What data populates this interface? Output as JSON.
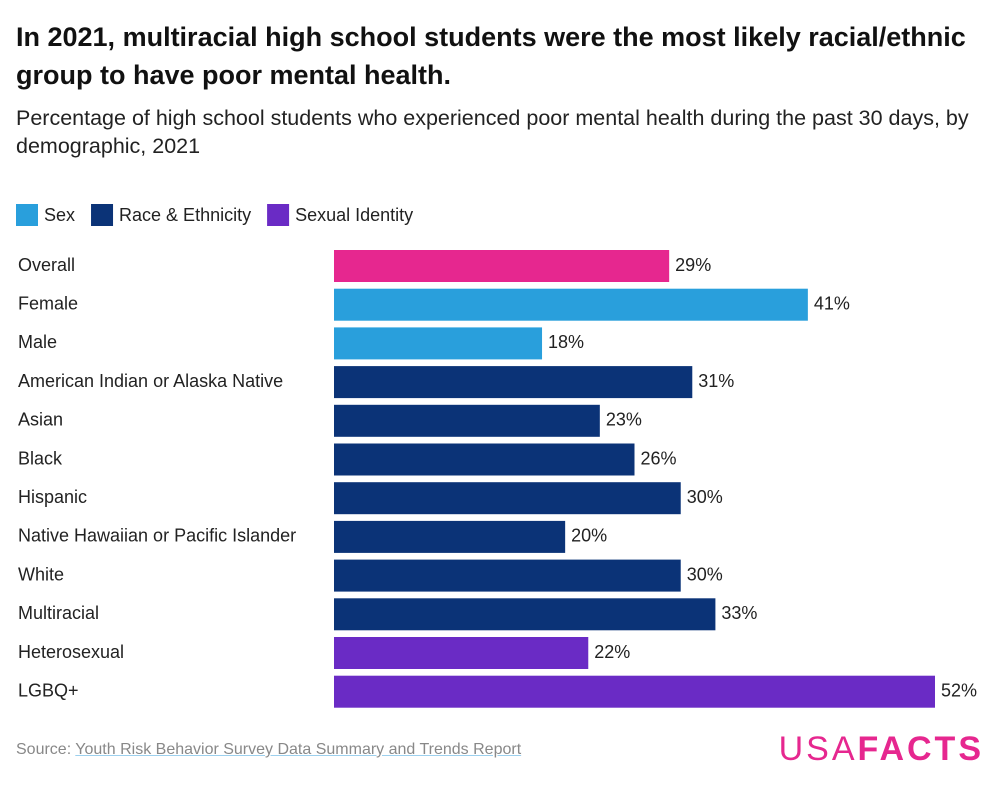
{
  "chart_data": {
    "type": "bar",
    "orientation": "horizontal",
    "title": "In 2021, multiracial high school students were the most likely racial/ethnic group to have poor mental health.",
    "subtitle": "Percentage of high school students who experienced poor mental health during the past 30 days, by demographic, 2021",
    "legend": [
      {
        "name": "Sex",
        "color": "#299fdc"
      },
      {
        "name": "Race & Ethnicity",
        "color": "#0b3377"
      },
      {
        "name": "Sexual Identity",
        "color": "#6a2bc5"
      }
    ],
    "categories": [
      "Overall",
      "Female",
      "Male",
      "American Indian or Alaska Native",
      "Asian",
      "Black",
      "Hispanic",
      "Native Hawaiian or Pacific Islander",
      "White",
      "Multiracial",
      "Heterosexual",
      "LGBQ+"
    ],
    "values": [
      29,
      41,
      18,
      31,
      23,
      26,
      30,
      20,
      30,
      33,
      22,
      52
    ],
    "value_labels": [
      "29%",
      "41%",
      "18%",
      "31%",
      "23%",
      "26%",
      "30%",
      "20%",
      "30%",
      "33%",
      "22%",
      "52%"
    ],
    "colors": [
      "#e6278f",
      "#299fdc",
      "#299fdc",
      "#0b3377",
      "#0b3377",
      "#0b3377",
      "#0b3377",
      "#0b3377",
      "#0b3377",
      "#0b3377",
      "#6a2bc5",
      "#6a2bc5"
    ]
  },
  "footer": {
    "source_label": "Source:",
    "source": "Youth Risk Behavior Survey Data Summary and Trends Report",
    "logo_light": "USA",
    "logo_bold": "FACTS"
  }
}
